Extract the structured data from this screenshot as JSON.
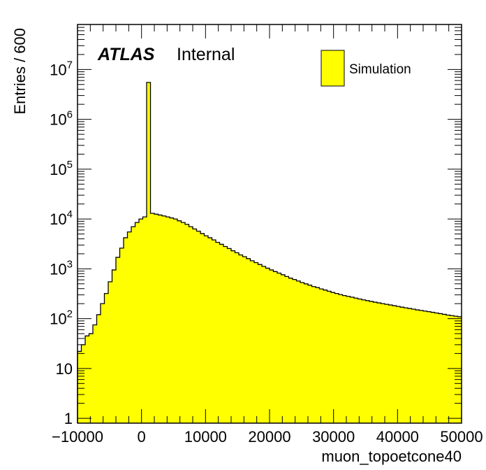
{
  "chart_data": {
    "type": "bar",
    "histogram": true,
    "xlabel": "muon_topoetcone40",
    "ylabel": "Entries / 600",
    "xlim": [
      -10000,
      50000
    ],
    "ylim": [
      0.8,
      80000000
    ],
    "yscale": "log",
    "bin_width": 600,
    "x_ticks": [
      {
        "value": -10000,
        "label": "−10000"
      },
      {
        "value": 0,
        "label": "0"
      },
      {
        "value": 10000,
        "label": "10000"
      },
      {
        "value": 20000,
        "label": "20000"
      },
      {
        "value": 30000,
        "label": "30000"
      },
      {
        "value": 40000,
        "label": "40000"
      },
      {
        "value": 50000,
        "label": "50000"
      }
    ],
    "y_ticks": [
      {
        "value": 1,
        "base": "1",
        "exp": ""
      },
      {
        "value": 10,
        "base": "10",
        "exp": ""
      },
      {
        "value": 100,
        "base": "10",
        "exp": "2"
      },
      {
        "value": 1000,
        "base": "10",
        "exp": "3"
      },
      {
        "value": 10000,
        "base": "10",
        "exp": "4"
      },
      {
        "value": 100000,
        "base": "10",
        "exp": "5"
      },
      {
        "value": 1000000,
        "base": "10",
        "exp": "6"
      },
      {
        "value": 10000000,
        "base": "10",
        "exp": "7"
      }
    ],
    "series": [
      {
        "name": "Simulation",
        "fill": "#ffff00",
        "line": "#000000",
        "x_start": -10000,
        "values": [
          22,
          30,
          45,
          50,
          75,
          120,
          200,
          320,
          550,
          950,
          1700,
          2600,
          4200,
          5500,
          7000,
          8500,
          10000,
          11000,
          5500000,
          13000,
          12500,
          12000,
          11500,
          11000,
          10500,
          10000,
          9200,
          8500,
          7800,
          7000,
          6300,
          5700,
          5100,
          4600,
          4200,
          3800,
          3400,
          3100,
          2800,
          2550,
          2300,
          2100,
          1900,
          1750,
          1600,
          1450,
          1330,
          1220,
          1120,
          1030,
          950,
          880,
          820,
          760,
          700,
          650,
          610,
          570,
          530,
          500,
          470,
          440,
          420,
          395,
          375,
          355,
          335,
          320,
          305,
          290,
          280,
          270,
          258,
          248,
          238,
          230,
          222,
          214,
          207,
          200,
          194,
          188,
          182,
          176,
          170,
          165,
          160,
          155,
          150,
          146,
          142,
          138,
          134,
          130,
          126,
          122,
          118,
          115,
          112,
          109
        ]
      }
    ],
    "labels": {
      "experiment": "ATLAS",
      "status": "Internal"
    },
    "legend": {
      "position": "top-right",
      "entries": [
        "Simulation"
      ]
    }
  }
}
